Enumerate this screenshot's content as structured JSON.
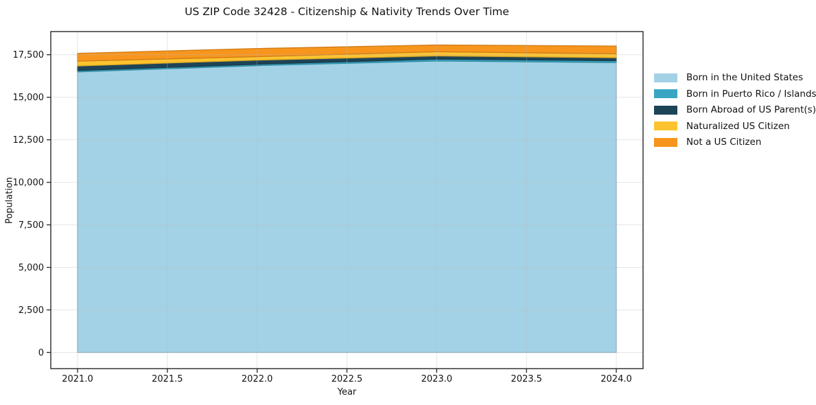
{
  "chart_data": {
    "type": "area",
    "stacked": true,
    "title": "US ZIP Code 32428 - Citizenship & Nativity Trends Over Time",
    "xlabel": "Year",
    "ylabel": "Population",
    "x": [
      2021,
      2022,
      2023,
      2024
    ],
    "x_ticks": [
      2021.0,
      2021.5,
      2022.0,
      2022.5,
      2023.0,
      2023.5,
      2024.0
    ],
    "x_tick_labels": [
      "2021.0",
      "2021.5",
      "2022.0",
      "2022.5",
      "2023.0",
      "2023.5",
      "2024.0"
    ],
    "y_ticks": [
      0,
      2500,
      5000,
      7500,
      10000,
      12500,
      15000,
      17500
    ],
    "y_tick_labels": [
      "0",
      "2,500",
      "5,000",
      "7,500",
      "10,000",
      "12,500",
      "15,000",
      "17,500"
    ],
    "xlim": [
      2020.851,
      2024.149
    ],
    "ylim": [
      -950,
      18860
    ],
    "grid": true,
    "legend_position": "right",
    "series": [
      {
        "name": "Born in the United States",
        "color": "#a3d2e6",
        "values": [
          16490,
          16860,
          17130,
          17040
        ]
      },
      {
        "name": "Born in Puerto Rico / Islands",
        "color": "#38a6c2",
        "values": [
          80,
          80,
          110,
          110
        ]
      },
      {
        "name": "Born Abroad of US Parent(s)",
        "color": "#1e4457",
        "values": [
          270,
          240,
          190,
          175
        ]
      },
      {
        "name": "Naturalized US Citizen",
        "color": "#fdc32f",
        "values": [
          280,
          205,
          245,
          230
        ]
      },
      {
        "name": "Not a US Citizen",
        "color": "#f7951d",
        "values": [
          460,
          480,
          395,
          455
        ]
      }
    ],
    "totals": [
      17580,
      17865,
      18070,
      18010
    ]
  }
}
